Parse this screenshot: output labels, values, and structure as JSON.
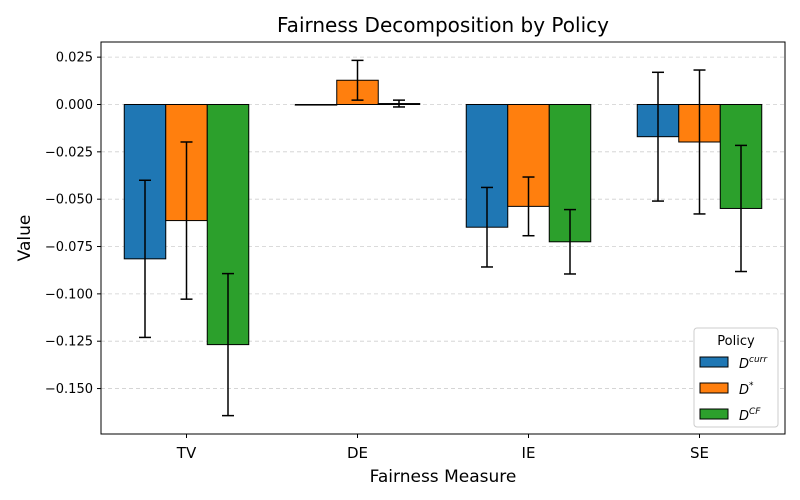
{
  "chart_data": {
    "type": "bar",
    "title": "Fairness Decomposition by Policy",
    "xlabel": "Fairness Measure",
    "ylabel": "Value",
    "categories": [
      "TV",
      "DE",
      "IE",
      "SE"
    ],
    "ylim": [
      -0.174,
      0.033
    ],
    "yticks": [
      0.025,
      0.0,
      -0.025,
      -0.05,
      -0.075,
      -0.1,
      -0.125,
      -0.15
    ],
    "ytick_labels": [
      "0.025",
      "0.000",
      "−0.025",
      "−0.050",
      "−0.075",
      "−0.100",
      "−0.125",
      "−0.150"
    ],
    "grid": "y-dashed",
    "legend": {
      "title": "Policy",
      "placement": "lower-right"
    },
    "series": [
      {
        "name": "D",
        "sup": "curr",
        "color": "#1f77b4",
        "values": [
          -0.0815,
          0.0,
          -0.0648,
          -0.017
        ],
        "errors": [
          0.0415,
          0.0,
          0.021,
          0.034
        ]
      },
      {
        "name": "D",
        "sup": "*",
        "color": "#ff7f0e",
        "values": [
          -0.0613,
          0.0128,
          -0.0538,
          -0.0198
        ],
        "errors": [
          0.0415,
          0.0105,
          0.0155,
          0.038
        ]
      },
      {
        "name": "D",
        "sup": "CF",
        "color": "#2ca02c",
        "values": [
          -0.1268,
          0.0005,
          -0.0725,
          -0.0549
        ],
        "errors": [
          0.0375,
          0.0018,
          0.017,
          0.0333
        ]
      }
    ]
  }
}
